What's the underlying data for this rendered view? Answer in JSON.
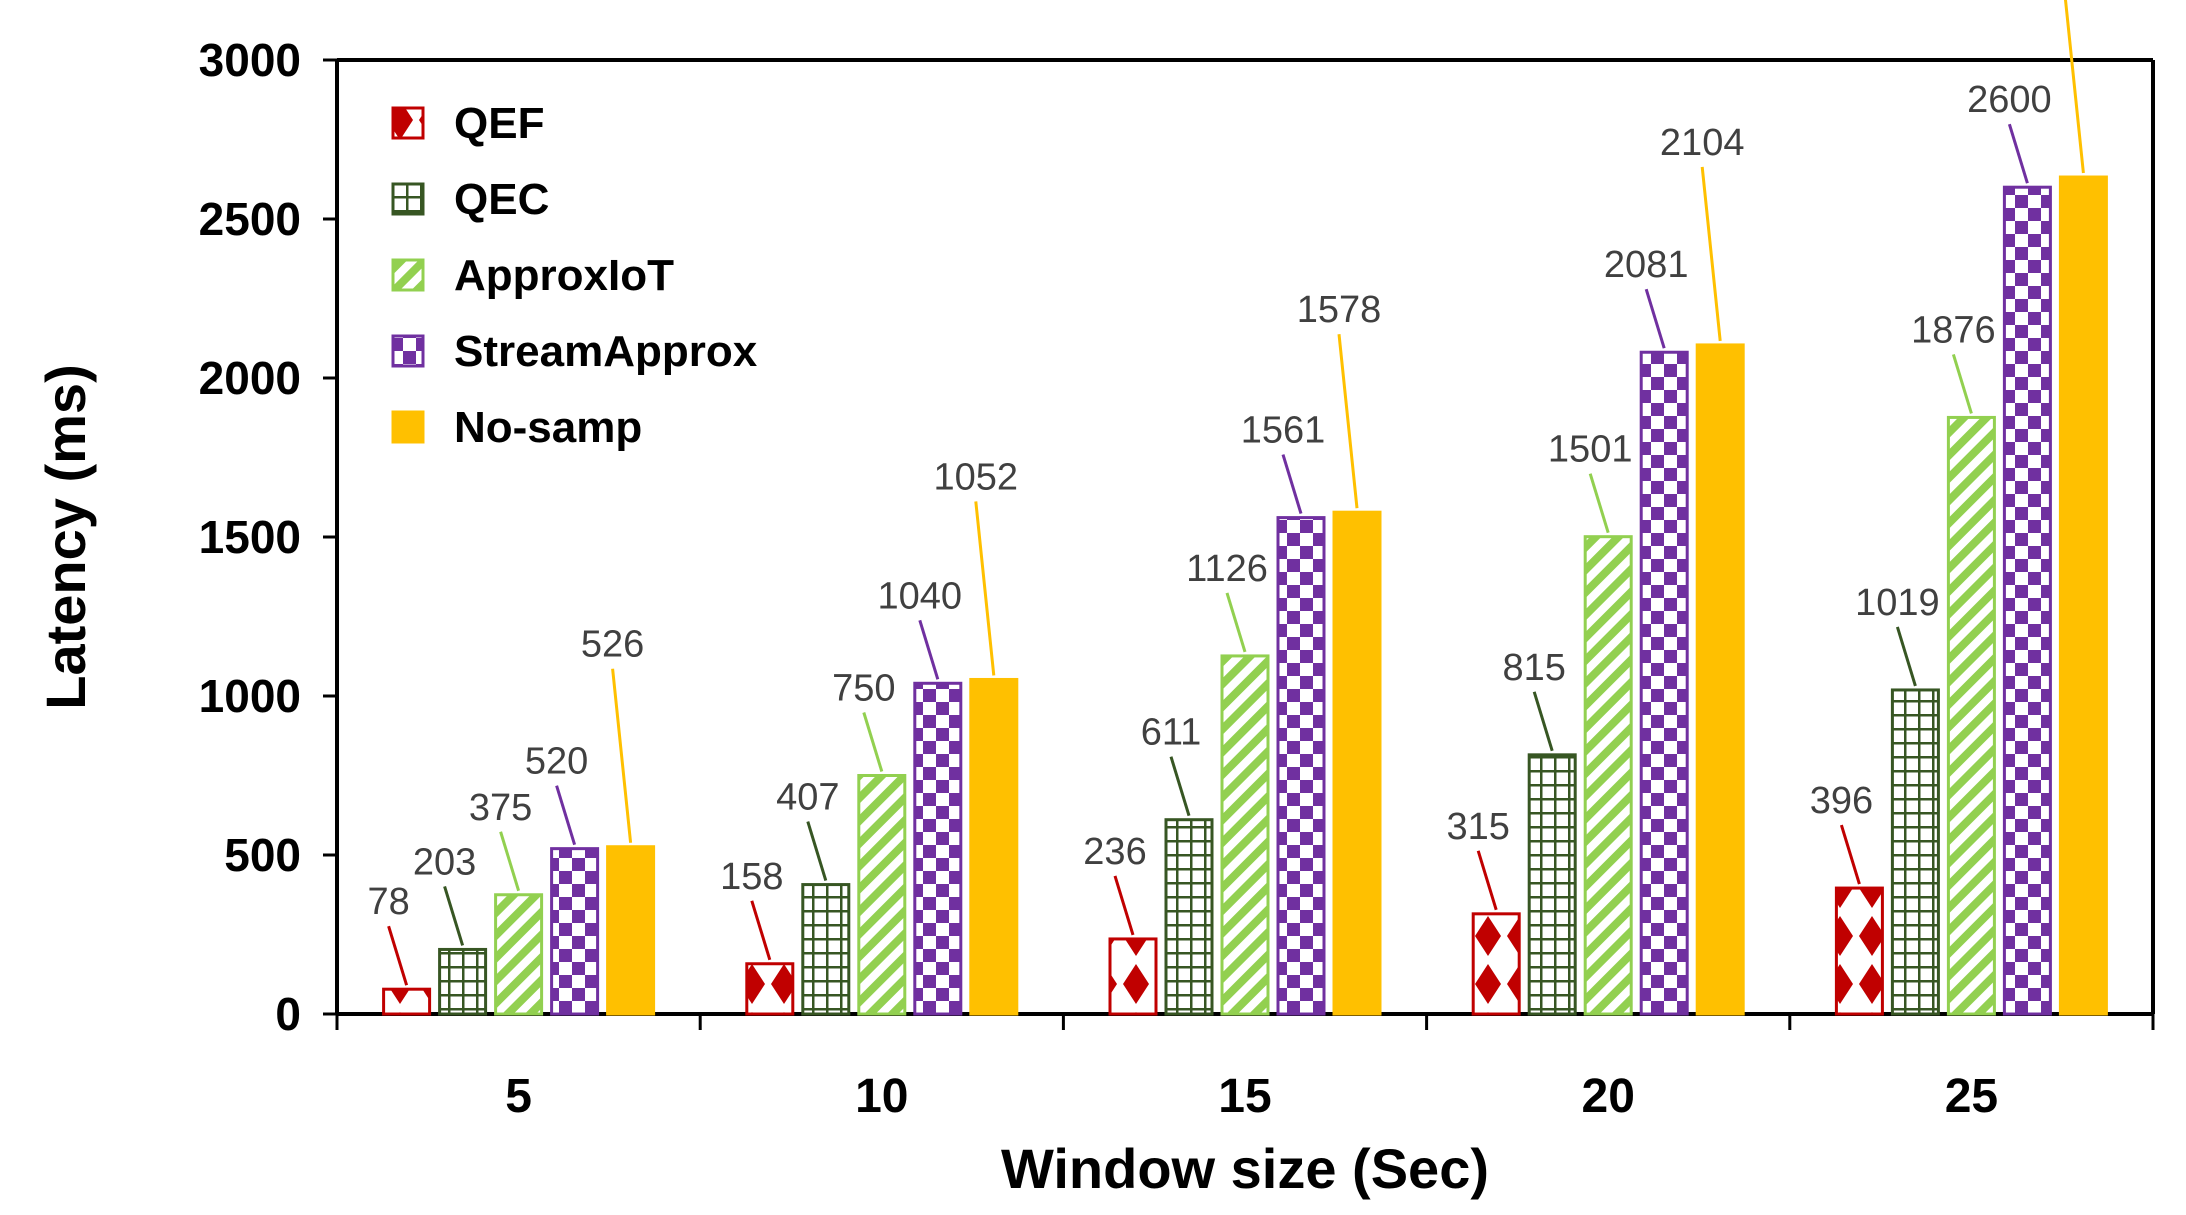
{
  "chart_data": {
    "type": "bar",
    "title": "",
    "xlabel": "Window size (Sec)",
    "ylabel": "Latency (ms)",
    "ylim": [
      0,
      3000
    ],
    "yticks": [
      0,
      500,
      1000,
      1500,
      2000,
      2500,
      3000
    ],
    "categories": [
      "5",
      "10",
      "15",
      "20",
      "25"
    ],
    "legend_position": "top-left",
    "series": [
      {
        "name": "QEF",
        "color": "#c00000",
        "pattern": "diamond",
        "values": [
          78,
          158,
          236,
          315,
          396
        ]
      },
      {
        "name": "QEC",
        "color": "#375623",
        "pattern": "grid",
        "values": [
          203,
          407,
          611,
          815,
          1019
        ]
      },
      {
        "name": "ApproxIoT",
        "color": "#92d050",
        "pattern": "diagonal",
        "values": [
          375,
          750,
          1126,
          1501,
          1876
        ]
      },
      {
        "name": "StreamApprox",
        "color": "#7030a0",
        "pattern": "checker",
        "values": [
          520,
          1040,
          1561,
          2081,
          2600
        ]
      },
      {
        "name": "No-samp",
        "color": "#ffc000",
        "pattern": "solid",
        "values": [
          526,
          1052,
          1578,
          2104,
          2632
        ]
      }
    ]
  }
}
